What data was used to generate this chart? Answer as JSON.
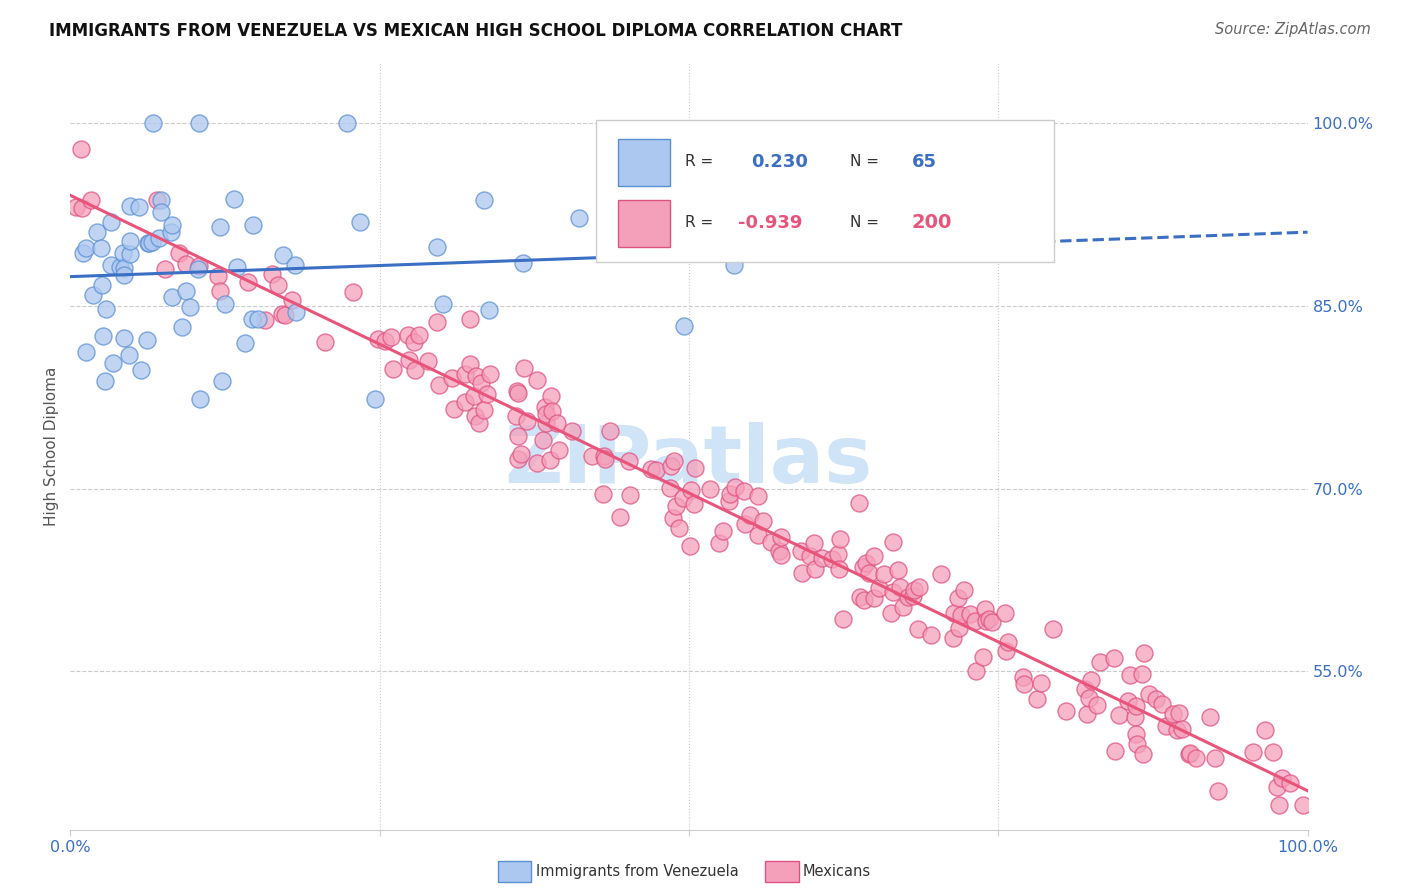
{
  "title": "IMMIGRANTS FROM VENEZUELA VS MEXICAN HIGH SCHOOL DIPLOMA CORRELATION CHART",
  "source": "Source: ZipAtlas.com",
  "ylabel": "High School Diploma",
  "ytick_positions": [
    1.0,
    0.85,
    0.7,
    0.55
  ],
  "xtick_positions": [
    0.0,
    0.25,
    0.5,
    0.75,
    1.0
  ],
  "legend_blue_R": "0.230",
  "legend_blue_N": "65",
  "legend_pink_R": "-0.939",
  "legend_pink_N": "200",
  "blue_fill": "#adc8f0",
  "blue_edge": "#5a8fd4",
  "pink_fill": "#f5a0bb",
  "pink_edge": "#e05080",
  "blue_line_color": "#3a6fc4",
  "pink_line_color": "#e8547a",
  "xlim": [
    0.0,
    1.0
  ],
  "ylim": [
    0.42,
    1.05
  ],
  "title_fontsize": 12,
  "source_fontsize": 10.5,
  "watermark": "ZIPatlas",
  "watermark_color": "#d0e4f7"
}
